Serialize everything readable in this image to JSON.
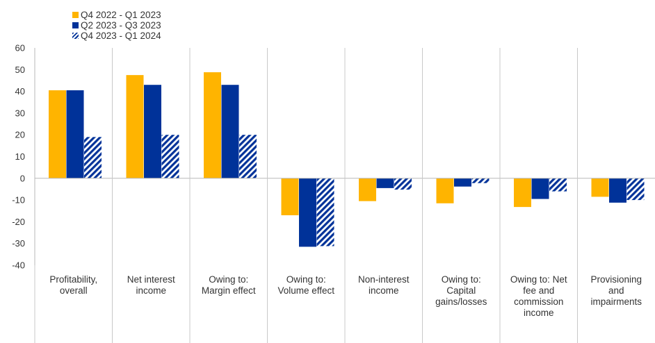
{
  "chart_data": {
    "type": "bar",
    "categories": [
      "Profitability, overall",
      "Net interest income",
      "Owing to: Margin effect",
      "Owing to: Volume effect",
      "Non-interest income",
      "Owing to: Capital gains/losses",
      "Owing to: Net fee and commission income",
      "Provisioning and impairments"
    ],
    "category_lines": [
      [
        "Profitability,",
        "overall"
      ],
      [
        "Net interest",
        "income"
      ],
      [
        "Owing to:",
        "Margin effect"
      ],
      [
        "Owing to:",
        "Volume effect"
      ],
      [
        "Non-interest",
        "income"
      ],
      [
        "Owing to:",
        "Capital",
        "gains/losses"
      ],
      [
        "Owing to: Net",
        "fee and",
        "commission",
        "income"
      ],
      [
        "Provisioning",
        "and",
        "impairments"
      ]
    ],
    "series": [
      {
        "name": "Q4 2022 - Q1 2023",
        "color": "#FFB400",
        "pattern": "solid",
        "values": [
          40.5,
          47.5,
          48.8,
          -17,
          -10.5,
          -11.5,
          -13.2,
          -8.5
        ]
      },
      {
        "name": "Q2 2023 - Q3 2023",
        "color": "#003299",
        "pattern": "solid",
        "values": [
          40.5,
          43,
          43,
          -31.5,
          -4.5,
          -3.8,
          -9.5,
          -11.2
        ]
      },
      {
        "name": "Q4 2023 - Q1 2024",
        "color": "#003299",
        "pattern": "diagonal-stripes",
        "values": [
          19,
          20,
          20,
          -31.2,
          -5.2,
          -2.2,
          -6,
          -10
        ]
      }
    ],
    "ylim": [
      -40,
      60
    ],
    "yticks": [
      60,
      50,
      40,
      30,
      20,
      10,
      0,
      -10,
      -20,
      -30,
      -40
    ],
    "xlabel": "",
    "ylabel": "",
    "grid": false,
    "legend_position": "top-left"
  }
}
